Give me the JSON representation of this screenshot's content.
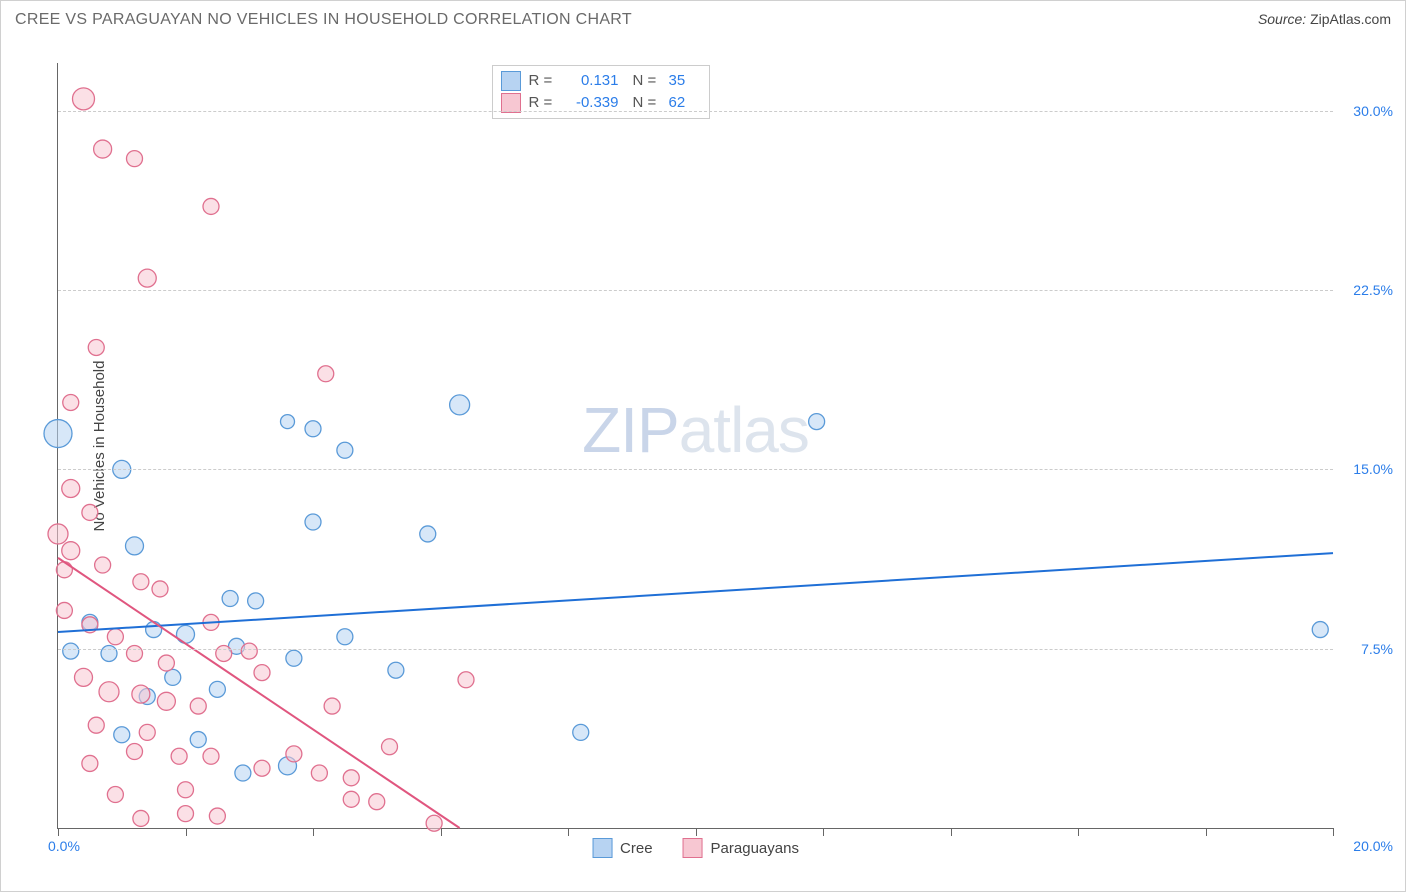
{
  "title": "CREE VS PARAGUAYAN NO VEHICLES IN HOUSEHOLD CORRELATION CHART",
  "source_label": "Source:",
  "source_value": "ZipAtlas.com",
  "watermark": {
    "left": "ZIP",
    "right": "atlas"
  },
  "y_axis_title": "No Vehicles in Household",
  "chart": {
    "type": "scatter",
    "xlim": [
      0,
      20
    ],
    "ylim": [
      0,
      32
    ],
    "x_ticks": [
      0,
      2,
      4,
      6,
      8,
      10,
      12,
      14,
      16,
      18,
      20
    ],
    "y_ticks": [
      7.5,
      15.0,
      22.5,
      30.0
    ],
    "y_tick_labels": [
      "7.5%",
      "15.0%",
      "22.5%",
      "30.0%"
    ],
    "x_min_label": "0.0%",
    "x_max_label": "20.0%",
    "grid_color": "#d0d0d0",
    "axis_color": "#666666",
    "background_color": "#ffffff",
    "series": [
      {
        "id": "cree",
        "label": "Cree",
        "color_fill": "#b7d3f2",
        "color_stroke": "#5a9ad8",
        "r_label": "R =",
        "r_value": "0.131",
        "n_label": "N =",
        "n_value": "35",
        "trendline": {
          "x1": 0,
          "y1": 8.2,
          "x2": 20,
          "y2": 11.5,
          "color": "#1f6fd6",
          "width": 2
        },
        "points": [
          {
            "x": 0.0,
            "y": 16.5,
            "r": 14
          },
          {
            "x": 6.3,
            "y": 17.7,
            "r": 10
          },
          {
            "x": 1.0,
            "y": 15.0,
            "r": 9
          },
          {
            "x": 4.0,
            "y": 16.7,
            "r": 8
          },
          {
            "x": 4.5,
            "y": 15.8,
            "r": 8
          },
          {
            "x": 4.0,
            "y": 12.8,
            "r": 8
          },
          {
            "x": 5.8,
            "y": 12.3,
            "r": 8
          },
          {
            "x": 11.9,
            "y": 17.0,
            "r": 8
          },
          {
            "x": 3.6,
            "y": 17.0,
            "r": 7
          },
          {
            "x": 1.2,
            "y": 11.8,
            "r": 9
          },
          {
            "x": 2.7,
            "y": 9.6,
            "r": 8
          },
          {
            "x": 3.1,
            "y": 9.5,
            "r": 8
          },
          {
            "x": 0.5,
            "y": 8.6,
            "r": 8
          },
          {
            "x": 1.5,
            "y": 8.3,
            "r": 8
          },
          {
            "x": 2.0,
            "y": 8.1,
            "r": 9
          },
          {
            "x": 0.2,
            "y": 7.4,
            "r": 8
          },
          {
            "x": 0.8,
            "y": 7.3,
            "r": 8
          },
          {
            "x": 2.5,
            "y": 5.8,
            "r": 8
          },
          {
            "x": 1.4,
            "y": 5.5,
            "r": 8
          },
          {
            "x": 2.2,
            "y": 3.7,
            "r": 8
          },
          {
            "x": 1.0,
            "y": 3.9,
            "r": 8
          },
          {
            "x": 2.8,
            "y": 7.6,
            "r": 8
          },
          {
            "x": 3.6,
            "y": 2.6,
            "r": 9
          },
          {
            "x": 2.9,
            "y": 2.3,
            "r": 8
          },
          {
            "x": 3.7,
            "y": 7.1,
            "r": 8
          },
          {
            "x": 4.5,
            "y": 8.0,
            "r": 8
          },
          {
            "x": 5.3,
            "y": 6.6,
            "r": 8
          },
          {
            "x": 1.8,
            "y": 6.3,
            "r": 8
          },
          {
            "x": 19.8,
            "y": 8.3,
            "r": 8
          },
          {
            "x": 8.2,
            "y": 4.0,
            "r": 8
          }
        ]
      },
      {
        "id": "paraguayans",
        "label": "Paraguayans",
        "color_fill": "#f7c7d2",
        "color_stroke": "#e0708f",
        "r_label": "R =",
        "r_value": "-0.339",
        "n_label": "N =",
        "n_value": "62",
        "trendline": {
          "x1": 0,
          "y1": 11.3,
          "x2": 6.3,
          "y2": 0,
          "color": "#e0567f",
          "width": 2
        },
        "points": [
          {
            "x": 0.4,
            "y": 30.5,
            "r": 11
          },
          {
            "x": 0.7,
            "y": 28.4,
            "r": 9
          },
          {
            "x": 1.2,
            "y": 28.0,
            "r": 8
          },
          {
            "x": 2.4,
            "y": 26.0,
            "r": 8
          },
          {
            "x": 1.4,
            "y": 23.0,
            "r": 9
          },
          {
            "x": 0.6,
            "y": 20.1,
            "r": 8
          },
          {
            "x": 4.2,
            "y": 19.0,
            "r": 8
          },
          {
            "x": 0.2,
            "y": 17.8,
            "r": 8
          },
          {
            "x": 0.2,
            "y": 14.2,
            "r": 9
          },
          {
            "x": 0.5,
            "y": 13.2,
            "r": 8
          },
          {
            "x": 0.0,
            "y": 12.3,
            "r": 10
          },
          {
            "x": 0.2,
            "y": 11.6,
            "r": 9
          },
          {
            "x": 0.1,
            "y": 10.8,
            "r": 8
          },
          {
            "x": 0.7,
            "y": 11.0,
            "r": 8
          },
          {
            "x": 1.3,
            "y": 10.3,
            "r": 8
          },
          {
            "x": 1.6,
            "y": 10.0,
            "r": 8
          },
          {
            "x": 0.1,
            "y": 9.1,
            "r": 8
          },
          {
            "x": 0.5,
            "y": 8.5,
            "r": 8
          },
          {
            "x": 0.9,
            "y": 8.0,
            "r": 8
          },
          {
            "x": 2.4,
            "y": 8.6,
            "r": 8
          },
          {
            "x": 1.2,
            "y": 7.3,
            "r": 8
          },
          {
            "x": 1.7,
            "y": 6.9,
            "r": 8
          },
          {
            "x": 2.6,
            "y": 7.3,
            "r": 8
          },
          {
            "x": 3.0,
            "y": 7.4,
            "r": 8
          },
          {
            "x": 0.4,
            "y": 6.3,
            "r": 9
          },
          {
            "x": 0.8,
            "y": 5.7,
            "r": 10
          },
          {
            "x": 1.3,
            "y": 5.6,
            "r": 9
          },
          {
            "x": 1.7,
            "y": 5.3,
            "r": 9
          },
          {
            "x": 2.2,
            "y": 5.1,
            "r": 8
          },
          {
            "x": 0.6,
            "y": 4.3,
            "r": 8
          },
          {
            "x": 1.4,
            "y": 4.0,
            "r": 8
          },
          {
            "x": 1.9,
            "y": 3.0,
            "r": 8
          },
          {
            "x": 2.4,
            "y": 3.0,
            "r": 8
          },
          {
            "x": 2.0,
            "y": 1.6,
            "r": 8
          },
          {
            "x": 2.0,
            "y": 0.6,
            "r": 8
          },
          {
            "x": 2.5,
            "y": 0.5,
            "r": 8
          },
          {
            "x": 1.3,
            "y": 0.4,
            "r": 8
          },
          {
            "x": 0.9,
            "y": 1.4,
            "r": 8
          },
          {
            "x": 3.2,
            "y": 2.5,
            "r": 8
          },
          {
            "x": 3.2,
            "y": 6.5,
            "r": 8
          },
          {
            "x": 3.7,
            "y": 3.1,
            "r": 8
          },
          {
            "x": 4.1,
            "y": 2.3,
            "r": 8
          },
          {
            "x": 4.6,
            "y": 2.1,
            "r": 8
          },
          {
            "x": 4.6,
            "y": 1.2,
            "r": 8
          },
          {
            "x": 5.0,
            "y": 1.1,
            "r": 8
          },
          {
            "x": 4.3,
            "y": 5.1,
            "r": 8
          },
          {
            "x": 5.2,
            "y": 3.4,
            "r": 8
          },
          {
            "x": 5.9,
            "y": 0.2,
            "r": 8
          },
          {
            "x": 1.2,
            "y": 3.2,
            "r": 8
          },
          {
            "x": 0.5,
            "y": 2.7,
            "r": 8
          },
          {
            "x": 6.4,
            "y": 6.2,
            "r": 8
          }
        ]
      }
    ]
  }
}
